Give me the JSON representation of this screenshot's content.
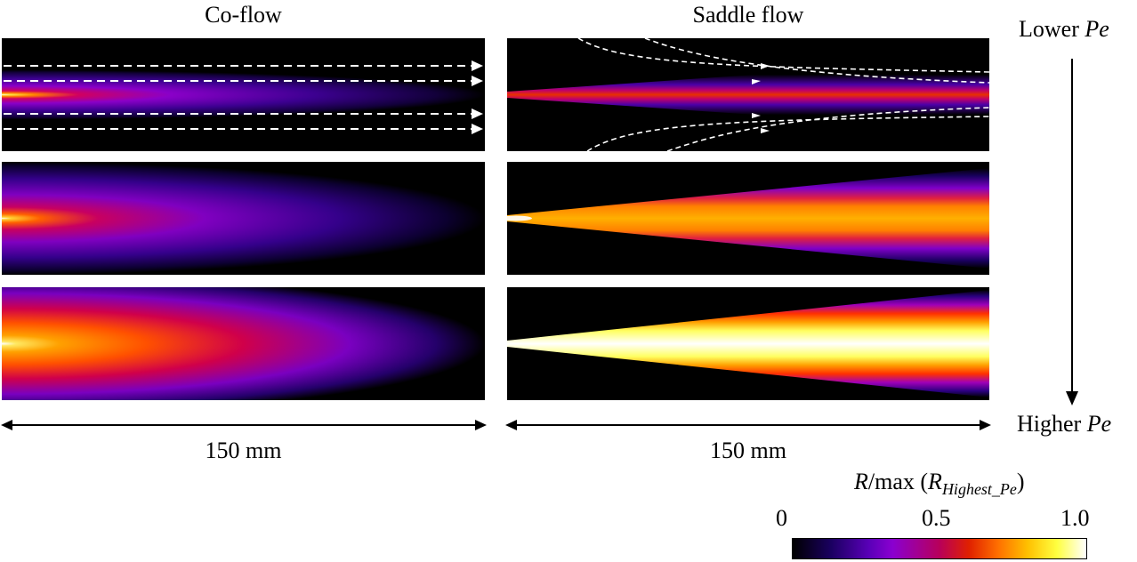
{
  "columns": {
    "coflow": {
      "title": "Co-flow"
    },
    "saddle": {
      "title": "Saddle flow"
    }
  },
  "trend_axis": {
    "top_label": "Lower ",
    "top_label_var": "Pe",
    "bottom_label": "Higher ",
    "bottom_label_var": "Pe"
  },
  "scale_bars": {
    "coflow_length": "150 mm",
    "saddle_length": "150 mm"
  },
  "colorbar": {
    "title_prefix": "R",
    "title_mid": "/max (",
    "title_var": "R",
    "title_sub": "Highest_Pe",
    "title_suffix": ")",
    "ticks": [
      {
        "label": "0",
        "value": 0.0
      },
      {
        "label": "0.5",
        "value": 0.5
      },
      {
        "label": "1.0",
        "value": 1.0
      }
    ],
    "colormap": "fire"
  },
  "panels": [
    {
      "name": "coflow-lower-pe",
      "flow": "coflow",
      "pe_level": "lower",
      "intensity": 0.35,
      "streamlines": true
    },
    {
      "name": "coflow-mid-pe",
      "flow": "coflow",
      "pe_level": "middle",
      "intensity": 0.5,
      "streamlines": false
    },
    {
      "name": "coflow-higher-pe",
      "flow": "coflow",
      "pe_level": "higher",
      "intensity": 0.75,
      "streamlines": false
    },
    {
      "name": "saddle-lower-pe",
      "flow": "saddle",
      "pe_level": "lower",
      "intensity": 0.45,
      "streamlines": true
    },
    {
      "name": "saddle-mid-pe",
      "flow": "saddle",
      "pe_level": "middle",
      "intensity": 0.8,
      "streamlines": false
    },
    {
      "name": "saddle-higher-pe",
      "flow": "saddle",
      "pe_level": "higher",
      "intensity": 1.0,
      "streamlines": false
    }
  ],
  "colors": {
    "background": "#000000",
    "streamline": "#ffffff"
  }
}
